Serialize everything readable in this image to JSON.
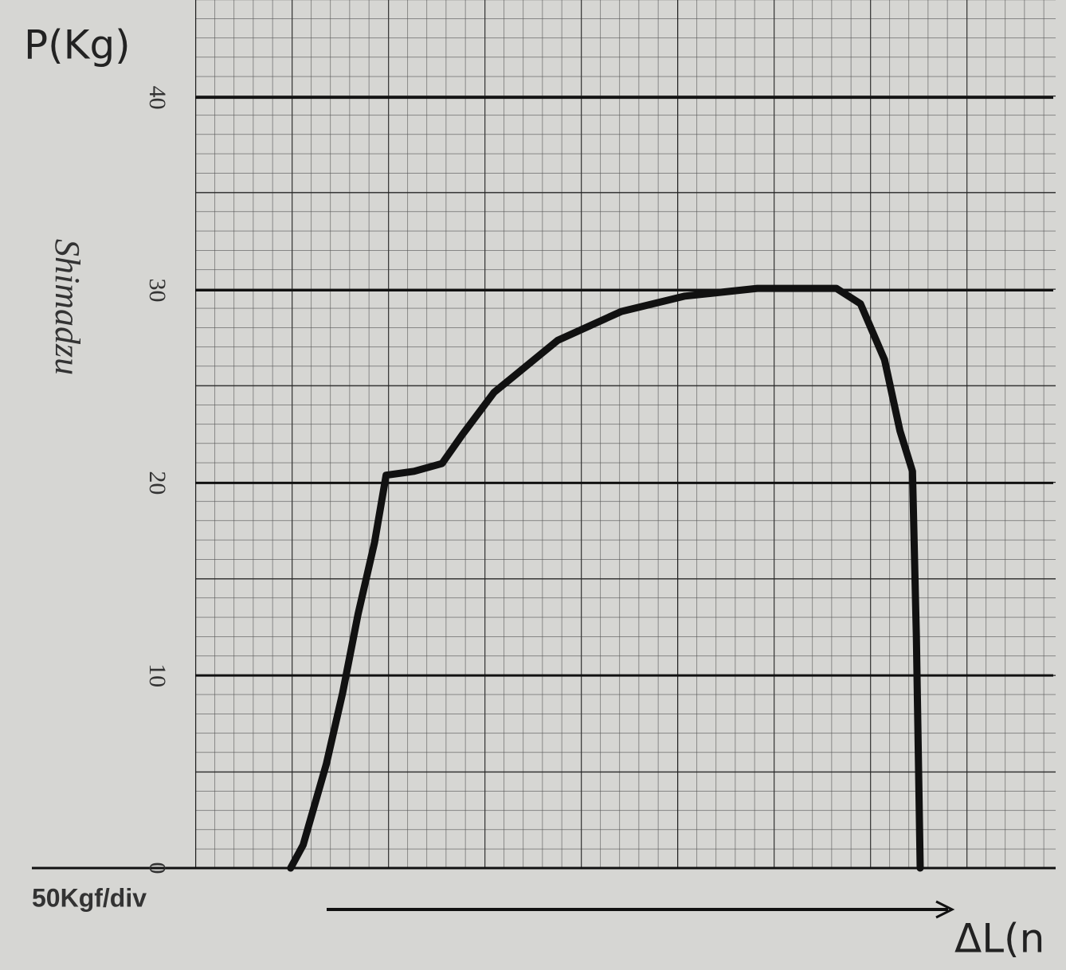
{
  "chart_data": {
    "type": "line",
    "title": "P(Kg)",
    "x_label": "ΔL(n",
    "annotation": "50Kgf/div",
    "brand": "Shimadzu",
    "x": [
      0.99,
      1.12,
      1.36,
      1.53,
      1.69,
      1.86,
      1.98,
      2.27,
      2.56,
      2.77,
      3.1,
      3.76,
      4.42,
      5.08,
      5.83,
      6.65,
      6.9,
      7.15,
      7.31,
      7.44,
      7.48,
      7.52
    ],
    "values": [
      0,
      1.2,
      5.4,
      9.1,
      13.2,
      16.9,
      20.4,
      20.6,
      21,
      22.5,
      24.7,
      27.4,
      28.9,
      29.7,
      30.1,
      30.1,
      29.3,
      26.4,
      22.7,
      20.6,
      12,
      0
    ],
    "color": "#111111",
    "xlim": [
      0,
      8.9
    ],
    "ylim": [
      0,
      45
    ],
    "yticks": [
      0,
      10,
      20,
      30,
      40
    ],
    "grid": true
  }
}
